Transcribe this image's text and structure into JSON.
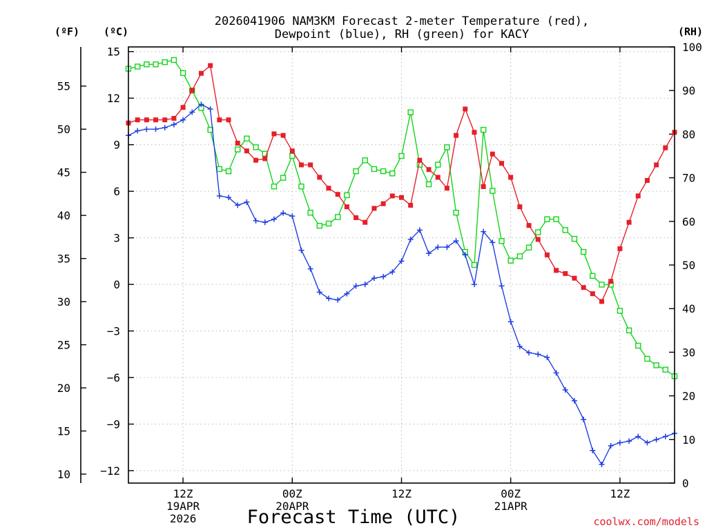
{
  "chart_data": {
    "type": "line",
    "title_line1": "2026041906 NAM3KM Forecast 2-meter Temperature (red),",
    "title_line2": "Dewpoint (blue), RH (green) for KACY",
    "xlabel": "Forecast Time (UTC)",
    "credit": "coolwx.com/models",
    "units": {
      "fahrenheit": "(ºF)",
      "celsius": "(ºC)",
      "rh": "(RH)"
    },
    "xlim_hours": [
      0,
      60
    ],
    "ylim_celsius": [
      -12.8,
      15.3
    ],
    "ylim_rh": [
      0,
      100
    ],
    "celsius_ticks": [
      15,
      12,
      9,
      6,
      3,
      0,
      -3,
      -6,
      -9,
      -12
    ],
    "celsius_tick_labels": [
      "15",
      "12",
      "9",
      "6",
      "3",
      "0",
      "−3",
      "−6",
      "−9",
      "−12"
    ],
    "fahrenheit_ticks": [
      55,
      50,
      45,
      40,
      35,
      30,
      25,
      20,
      15,
      10
    ],
    "rh_ticks": [
      100,
      90,
      80,
      70,
      60,
      50,
      40,
      30,
      20,
      10,
      0
    ],
    "x_ticks": [
      {
        "hour": 6,
        "lines": [
          "12Z",
          "19APR",
          "2026"
        ]
      },
      {
        "hour": 18,
        "lines": [
          "00Z",
          "20APR"
        ]
      },
      {
        "hour": 30,
        "lines": [
          "12Z"
        ]
      },
      {
        "hour": 42,
        "lines": [
          "00Z",
          "21APR"
        ]
      },
      {
        "hour": 54,
        "lines": [
          "12Z"
        ]
      }
    ],
    "grid": true,
    "series": [
      {
        "name": "Temperature",
        "axis": "celsius",
        "color": "#e5202a",
        "marker": "filled-square",
        "values": [
          10.4,
          10.6,
          10.6,
          10.6,
          10.6,
          10.7,
          11.4,
          12.5,
          13.6,
          14.1,
          10.6,
          10.6,
          9.1,
          8.6,
          8.0,
          8.1,
          9.7,
          9.6,
          8.6,
          7.7,
          7.7,
          6.9,
          6.2,
          5.8,
          5.0,
          4.3,
          4.0,
          4.9,
          5.2,
          5.7,
          5.6,
          5.1,
          8.0,
          7.4,
          6.9,
          6.2,
          9.6,
          11.3,
          9.8,
          6.3,
          8.4,
          7.8,
          6.9,
          5.0,
          3.8,
          2.9,
          1.9,
          0.9,
          0.7,
          0.4,
          -0.2,
          -0.6,
          -1.1,
          0.2,
          2.3,
          4.0,
          5.7,
          6.7,
          7.7,
          8.8,
          9.8
        ]
      },
      {
        "name": "Dewpoint",
        "axis": "celsius",
        "color": "#1f3fe0",
        "marker": "plus",
        "values": [
          9.6,
          9.9,
          10.0,
          10.0,
          10.1,
          10.3,
          10.6,
          11.1,
          11.6,
          11.3,
          5.7,
          5.6,
          5.1,
          5.3,
          4.1,
          4.0,
          4.2,
          4.6,
          4.4,
          2.2,
          1.0,
          -0.5,
          -0.9,
          -1.0,
          -0.6,
          -0.1,
          0.0,
          0.4,
          0.5,
          0.8,
          1.5,
          2.9,
          3.5,
          2.0,
          2.4,
          2.4,
          2.8,
          1.9,
          0.0,
          3.4,
          2.7,
          -0.1,
          -2.4,
          -4.0,
          -4.4,
          -4.5,
          -4.7,
          -5.7,
          -6.8,
          -7.5,
          -8.7,
          -10.7,
          -11.6,
          -10.4,
          -10.2,
          -10.1,
          -9.8,
          -10.2,
          -10.0,
          -9.8,
          -9.6
        ]
      },
      {
        "name": "RH",
        "axis": "rh",
        "color": "#12d41a",
        "marker": "open-square",
        "values": [
          95,
          95.5,
          96,
          96,
          96.5,
          97,
          94,
          90,
          86,
          81,
          72,
          71.5,
          76.5,
          79,
          77,
          75.5,
          68,
          70,
          75,
          68,
          62,
          59,
          59.5,
          61,
          66,
          71.5,
          74,
          72,
          71.5,
          71,
          75,
          85,
          73,
          68.5,
          73,
          77,
          62,
          53,
          50,
          81,
          67,
          55.5,
          51,
          52,
          54,
          57.5,
          60.5,
          60.5,
          58,
          56,
          53,
          47.5,
          45.5,
          45.5,
          39.5,
          35,
          31.5,
          28.5,
          27,
          26,
          24.5
        ]
      }
    ]
  }
}
